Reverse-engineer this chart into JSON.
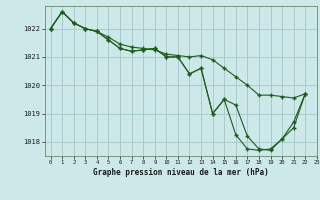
{
  "title": "Graphe pression niveau de la mer (hPa)",
  "bg_color": "#cce8e8",
  "grid_color": "#aacccc",
  "line_color": "#1e5c1e",
  "xlim": [
    -0.5,
    23
  ],
  "ylim": [
    1017.5,
    1022.8
  ],
  "yticks": [
    1018,
    1019,
    1020,
    1021,
    1022
  ],
  "xticks": [
    0,
    1,
    2,
    3,
    4,
    5,
    6,
    7,
    8,
    9,
    10,
    11,
    12,
    13,
    14,
    15,
    16,
    17,
    18,
    19,
    20,
    21,
    22,
    23
  ],
  "line1": [
    1022.0,
    1022.6,
    1022.2,
    1022.0,
    1021.9,
    1021.7,
    1021.45,
    1021.35,
    1021.3,
    1021.25,
    1021.1,
    1021.05,
    1021.0,
    1021.05,
    1020.9,
    1020.6,
    1020.3,
    1020.0,
    1019.65,
    1019.65,
    1019.6,
    1019.55,
    1019.7
  ],
  "line2": [
    1022.0,
    1022.6,
    1022.2,
    1022.0,
    1021.9,
    1021.6,
    1021.3,
    1021.2,
    1021.25,
    1021.3,
    1021.0,
    1021.0,
    1020.4,
    1020.6,
    1019.0,
    1019.5,
    1019.3,
    1018.2,
    1017.75,
    1017.7,
    1018.1,
    1018.7,
    1019.7
  ],
  "line3": [
    1022.0,
    1022.6,
    1022.2,
    1022.0,
    1021.9,
    1021.6,
    1021.3,
    1021.2,
    1021.25,
    1021.3,
    1021.0,
    1021.0,
    1020.4,
    1020.6,
    1019.0,
    1019.5,
    1018.25,
    1017.75,
    1017.7,
    1017.75,
    1018.1,
    1018.5,
    1019.7
  ]
}
